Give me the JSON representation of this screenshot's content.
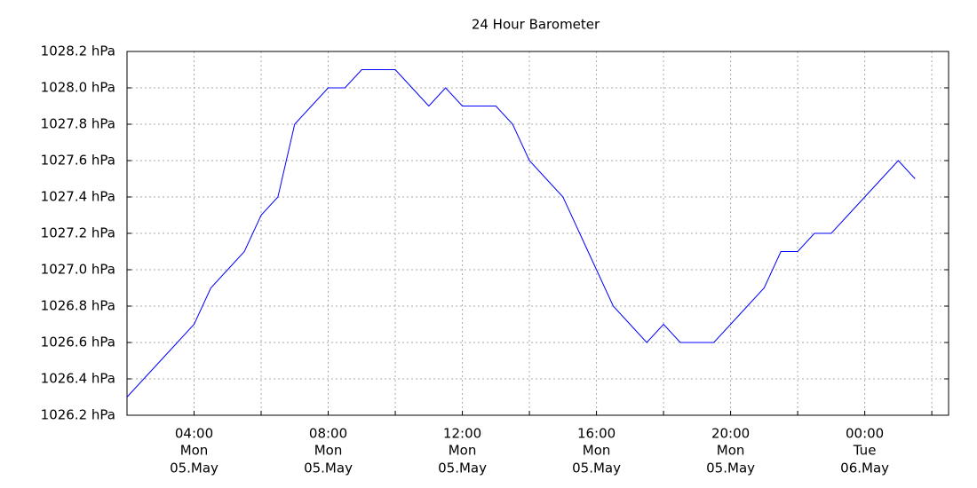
{
  "chart_data": {
    "type": "line",
    "title": "24 Hour Barometer",
    "color": "#0000ff",
    "grid": true,
    "x": [
      2,
      2.5,
      3,
      3.5,
      4,
      4.5,
      5,
      5.5,
      6,
      6.5,
      7,
      7.5,
      8,
      8.5,
      9,
      9.5,
      10,
      10.5,
      11,
      11.5,
      12,
      12.5,
      13,
      13.5,
      14,
      14.5,
      15,
      15.5,
      16,
      16.5,
      17,
      17.5,
      18,
      18.5,
      19,
      19.5,
      20,
      20.5,
      21,
      21.5,
      22,
      22.5,
      23,
      23.5,
      24,
      24.5,
      25,
      25.5
    ],
    "values": [
      1026.3,
      1026.4,
      1026.5,
      1026.6,
      1026.7,
      1026.9,
      1027.0,
      1027.1,
      1027.3,
      1027.4,
      1027.8,
      1027.9,
      1028.0,
      1028.0,
      1028.1,
      1028.1,
      1028.1,
      1028.0,
      1027.9,
      1028.0,
      1027.9,
      1027.9,
      1027.9,
      1027.8,
      1027.6,
      1027.5,
      1027.4,
      1027.2,
      1027.0,
      1026.8,
      1026.7,
      1026.6,
      1026.7,
      1026.6,
      1026.6,
      1026.6,
      1026.7,
      1026.8,
      1026.9,
      1027.1,
      1027.1,
      1027.2,
      1027.2,
      1027.3,
      1027.4,
      1027.5,
      1027.6,
      1027.5
    ],
    "xlim": [
      2,
      26.5
    ],
    "xticks": [
      {
        "value": 4,
        "label": "04:00",
        "day": "Mon",
        "date": "05.May"
      },
      {
        "value": 8,
        "label": "08:00",
        "day": "Mon",
        "date": "05.May"
      },
      {
        "value": 12,
        "label": "12:00",
        "day": "Mon",
        "date": "05.May"
      },
      {
        "value": 16,
        "label": "16:00",
        "day": "Mon",
        "date": "05.May"
      },
      {
        "value": 20,
        "label": "20:00",
        "day": "Mon",
        "date": "05.May"
      },
      {
        "value": 24,
        "label": "00:00",
        "day": "Tue",
        "date": "06.May"
      }
    ],
    "xgrid_minor": [
      6,
      10,
      14,
      18,
      22,
      26
    ],
    "ylim": [
      1026.2,
      1028.2
    ],
    "yticks": [
      {
        "value": 1026.2,
        "label": "1026.2 hPa"
      },
      {
        "value": 1026.4,
        "label": "1026.4 hPa"
      },
      {
        "value": 1026.6,
        "label": "1026.6 hPa"
      },
      {
        "value": 1026.8,
        "label": "1026.8 hPa"
      },
      {
        "value": 1027.0,
        "label": "1027.0 hPa"
      },
      {
        "value": 1027.2,
        "label": "1027.2 hPa"
      },
      {
        "value": 1027.4,
        "label": "1027.4 hPa"
      },
      {
        "value": 1027.6,
        "label": "1027.6 hPa"
      },
      {
        "value": 1027.8,
        "label": "1027.8 hPa"
      },
      {
        "value": 1028.0,
        "label": "1028.0 hPa"
      },
      {
        "value": 1028.2,
        "label": "1028.2 hPa"
      }
    ]
  }
}
